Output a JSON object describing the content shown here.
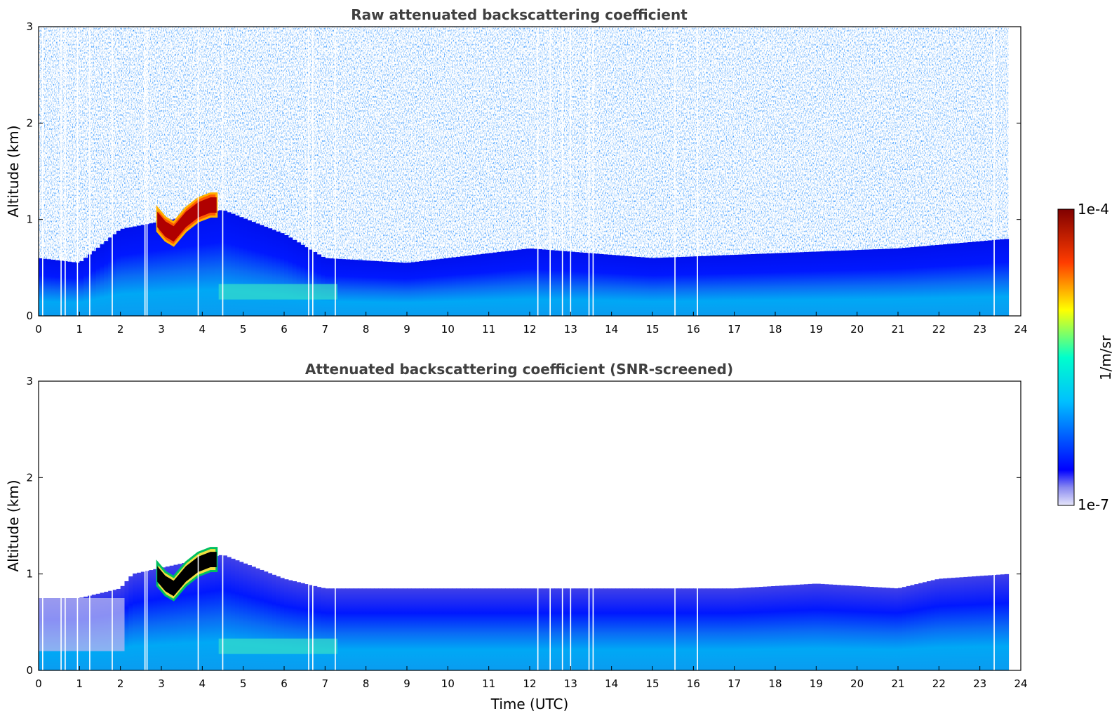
{
  "chart_data": [
    {
      "type": "heatmap",
      "title": "Raw attenuated backscattering coefficient",
      "xlabel": "",
      "ylabel": "Altitude (km)",
      "xlim": [
        0,
        24
      ],
      "ylim": [
        0,
        3
      ],
      "xticks": [
        "0",
        "1",
        "2",
        "3",
        "4",
        "5",
        "6",
        "7",
        "8",
        "9",
        "10",
        "11",
        "12",
        "13",
        "14",
        "15",
        "16",
        "17",
        "18",
        "19",
        "20",
        "21",
        "22",
        "23",
        "24"
      ],
      "yticks": [
        "0",
        "1",
        "2",
        "3"
      ],
      "data_end_hour": 23.7,
      "boundary_layer_top_km": [
        [
          0,
          0.6
        ],
        [
          1,
          0.55
        ],
        [
          2,
          0.9
        ],
        [
          4.5,
          1.1
        ],
        [
          6,
          0.85
        ],
        [
          7,
          0.6
        ],
        [
          9,
          0.55
        ],
        [
          12,
          0.7
        ],
        [
          15,
          0.6
        ],
        [
          18,
          0.65
        ],
        [
          21,
          0.7
        ],
        [
          23.7,
          0.8
        ]
      ],
      "aerosol_layer": {
        "x_range": [
          4.4,
          7.3
        ],
        "y_center_km": 0.25,
        "level": 0.55
      },
      "cloud": {
        "x": [
          2.9,
          3.1,
          3.3,
          3.6,
          3.9,
          4.2,
          4.35
        ],
        "y_center_km": [
          1.0,
          0.9,
          0.85,
          1.0,
          1.1,
          1.15,
          1.15
        ],
        "level": 0.95
      },
      "dropout_hours": [
        0.1,
        0.55,
        0.65,
        0.95,
        1.25,
        1.8,
        2.6,
        2.65,
        3.9,
        4.5,
        6.6,
        6.7,
        7.25,
        12.2,
        12.5,
        12.8,
        13.0,
        13.45,
        13.55,
        15.55,
        16.1,
        23.35
      ],
      "noise_above_layer": true,
      "legend": "none"
    },
    {
      "type": "heatmap",
      "title": "Attenuated backscattering coefficient (SNR-screened)",
      "xlabel": "Time (UTC)",
      "ylabel": "Altitude (km)",
      "xlim": [
        0,
        24
      ],
      "ylim": [
        0,
        3
      ],
      "xticks": [
        "0",
        "1",
        "2",
        "3",
        "4",
        "5",
        "6",
        "7",
        "8",
        "9",
        "10",
        "11",
        "12",
        "13",
        "14",
        "15",
        "16",
        "17",
        "18",
        "19",
        "20",
        "21",
        "22",
        "23",
        "24"
      ],
      "yticks": [
        "0",
        "1",
        "2",
        "3"
      ],
      "data_end_hour": 23.7,
      "boundary_layer_top_km": [
        [
          0,
          0.75
        ],
        [
          1,
          0.75
        ],
        [
          2,
          0.85
        ],
        [
          2.3,
          1.0
        ],
        [
          4.5,
          1.2
        ],
        [
          6,
          0.95
        ],
        [
          7,
          0.85
        ],
        [
          9,
          0.85
        ],
        [
          12,
          0.85
        ],
        [
          15,
          0.85
        ],
        [
          17,
          0.85
        ],
        [
          19,
          0.9
        ],
        [
          21,
          0.85
        ],
        [
          22,
          0.95
        ],
        [
          23.7,
          1.0
        ]
      ],
      "aerosol_layer": {
        "x_range": [
          4.4,
          7.3
        ],
        "y_center_km": 0.25,
        "level": 0.55
      },
      "cloud": {
        "x": [
          2.9,
          3.1,
          3.3,
          3.6,
          3.9,
          4.2,
          4.35
        ],
        "y_center_km": [
          1.0,
          0.9,
          0.85,
          1.0,
          1.1,
          1.15,
          1.15
        ],
        "level": 1.0
      },
      "dropout_hours": [
        0.1,
        0.55,
        0.65,
        0.95,
        1.25,
        1.8,
        2.6,
        2.65,
        3.9,
        4.5,
        6.6,
        6.7,
        7.25,
        12.2,
        12.5,
        12.8,
        13.0,
        13.45,
        13.55,
        15.55,
        16.1,
        23.35
      ],
      "noise_above_layer": false,
      "legend": "none"
    }
  ],
  "colorbar": {
    "label": "1/m/sr",
    "max_label": "1e-4",
    "min_label": "1e-7",
    "range": [
      1e-07,
      0.0001
    ],
    "scale": "log",
    "colormap": "jet",
    "stops": [
      "#e6e6fa",
      "#0000ff",
      "#00bfff",
      "#00ffcc",
      "#ffff00",
      "#ff3c00",
      "#800000"
    ]
  },
  "colors": {
    "axis": "#000000",
    "title": "#404040",
    "background": "#ffffff"
  }
}
